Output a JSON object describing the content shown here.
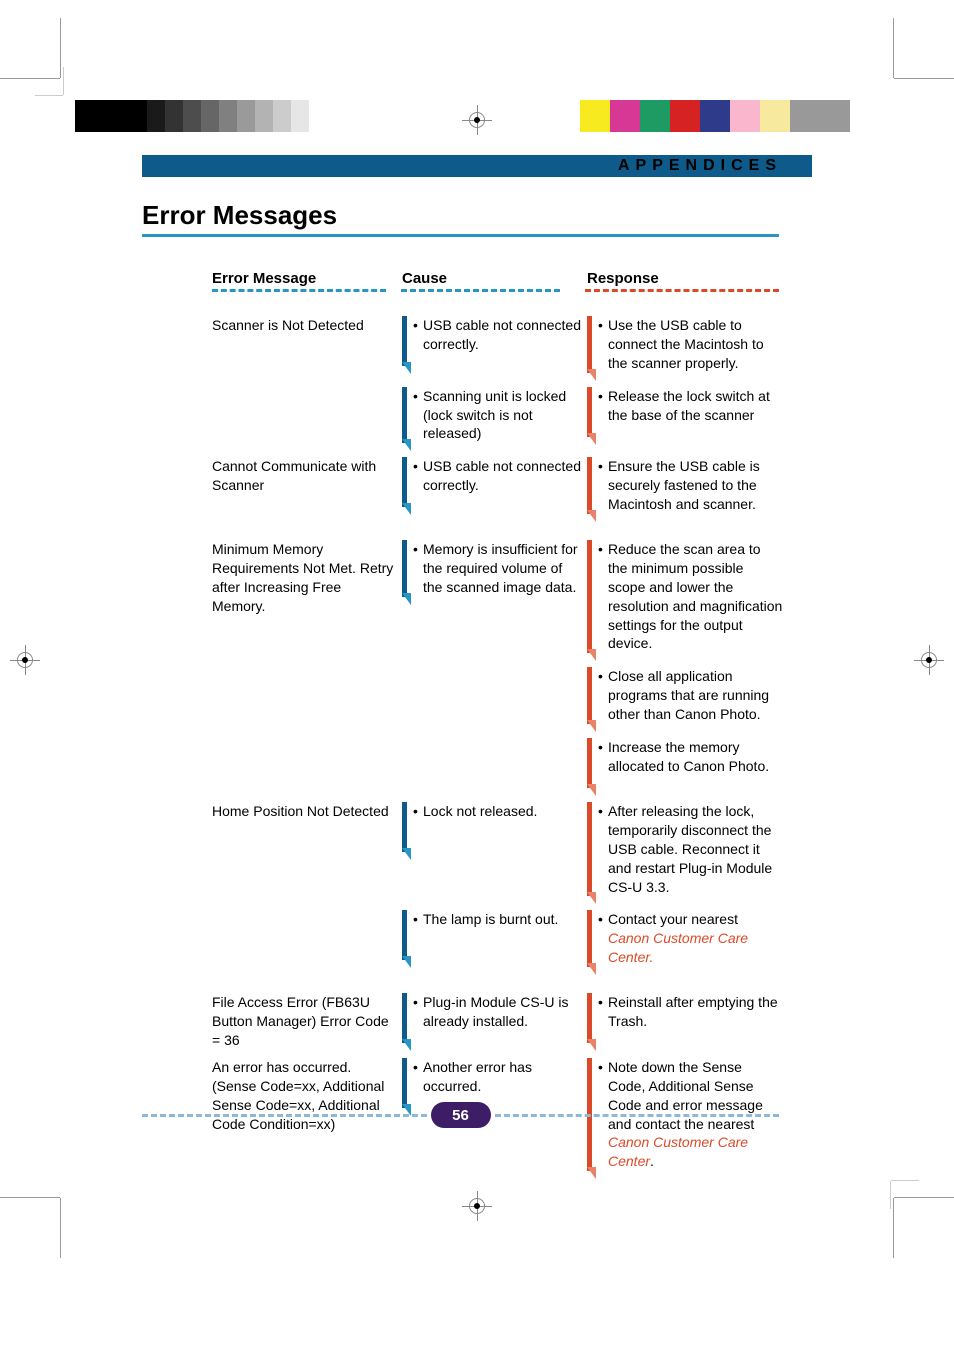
{
  "header": {
    "section": "APPENDICES"
  },
  "title": "Error Messages",
  "columns": {
    "error": "Error Message",
    "cause": "Cause",
    "response": "Response"
  },
  "rows": [
    {
      "error": "Scanner is Not Detected",
      "pairs": [
        {
          "cause": "USB cable not connected correctly.",
          "response": "Use the USB cable to connect the Macintosh to the scanner properly."
        },
        {
          "cause": "Scanning unit is locked (lock switch is not released)",
          "response": "Release the lock switch at the base of the scanner"
        }
      ]
    },
    {
      "error": "Cannot Communicate with Scanner",
      "pairs": [
        {
          "cause": "USB cable not connected correctly.",
          "response": "Ensure the USB cable is securely fastened to the Macintosh and scanner."
        }
      ]
    },
    {
      "error": "Minimum Memory Requirements Not Met. Retry after Increasing Free Memory.",
      "pairs": [
        {
          "cause": "Memory is insufficient for the required volume of the scanned image data.",
          "response": "Reduce the scan area to the minimum possible scope and lower the resolution and magnification settings for the output device."
        },
        {
          "cause": "",
          "response": "Close all application programs that are running other than Canon Photo."
        },
        {
          "cause": "",
          "response": "Increase the memory allocated to Canon Photo."
        }
      ]
    },
    {
      "error": "Home Position Not Detected",
      "pairs": [
        {
          "cause": "Lock not released.",
          "response": "After releasing the lock, temporarily disconnect the USB cable. Reconnect it and restart Plug-in Module CS-U 3.3."
        },
        {
          "cause": "The lamp is burnt out.",
          "response_pre": "Contact your nearest ",
          "response_link": "Canon Customer Care Center.",
          "link": true
        }
      ]
    },
    {
      "error": "File Access Error (FB63U Button Manager) Error Code = 36",
      "pairs": [
        {
          "cause": "Plug-in Module CS-U is already installed.",
          "response": "Reinstall after emptying the Trash."
        }
      ]
    },
    {
      "error": "An error has occurred. (Sense Code=xx, Additional Sense Code=xx, Additional Code Condition=xx)",
      "pairs": [
        {
          "cause": "Another error has occurred.",
          "response_pre": "Note down the Sense Code, Additional Sense Code and error message and contact the nearest ",
          "response_link": "Canon Customer Care Center",
          "response_post": ".",
          "link": true
        }
      ]
    }
  ],
  "page_number": "56",
  "colorbar_left": [
    "#000000",
    "#000000",
    "#000000",
    "#000000",
    "#1a1a1a",
    "#333333",
    "#4d4d4d",
    "#666666",
    "#808080",
    "#9a9a9a",
    "#b3b3b3",
    "#cccccc",
    "#e6e6e6"
  ],
  "colorbar_right": [
    "#f7ea1e",
    "#d73895",
    "#1e9b62",
    "#d62222",
    "#2e3a8a",
    "#f9b6cc",
    "#f7ea9e",
    "#999999",
    "#999999"
  ]
}
